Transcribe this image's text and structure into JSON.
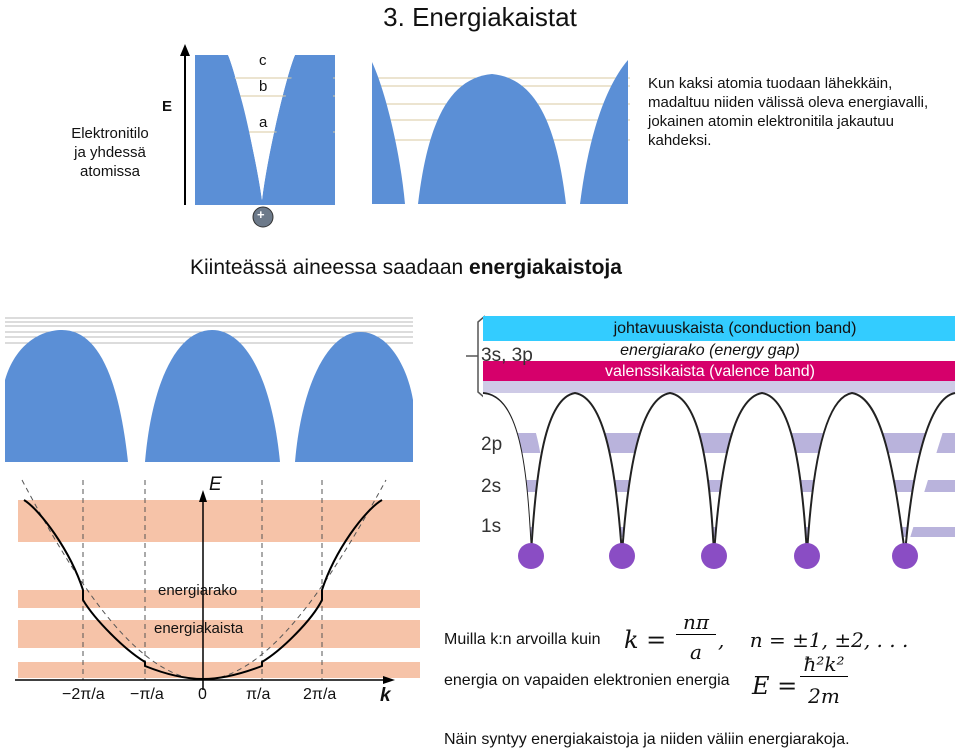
{
  "title": "3. Energiakaistat",
  "top_panel": {
    "left_label_lines": [
      "Elektronitilo",
      "ja yhdessä",
      "atomissa"
    ],
    "axis_label": "E",
    "levels": [
      "c",
      "b",
      "a"
    ],
    "nucleus": "+",
    "description": "Kun kaksi atomia tuodaan lähekkäin, madaltuu niiden välissä oleva energiavalli, jokainen atomin elektronitila jakautuu kahdeksi."
  },
  "subtitle": {
    "prefix": "Kiinteässä aineessa saadaan ",
    "emphasis": "energiakaistoja"
  },
  "band_diagram": {
    "shell_label": "3s, 3p",
    "conduction": "johtavuuskaista (conduction band)",
    "gap": "energiarako (energy gap)",
    "valence": "valenssikaista (valence band)",
    "lower_shells": [
      "2p",
      "2s",
      "1s"
    ],
    "colors": {
      "conduction": "#33ccff",
      "valence": "#d6006b",
      "shell": "#b9b3dc",
      "well": "#5b8fd6"
    }
  },
  "dispersion": {
    "axis_e": "E",
    "axis_k": "k",
    "gap_label": "energiarako",
    "band_label": "energiakaista",
    "ticks": [
      "−2π/a",
      "−π/a",
      "0",
      "π/a",
      "2π/a"
    ],
    "band_color": "#f6c3a8"
  },
  "notes": {
    "k_text": "Muilla k:n arvoilla kuin",
    "e_text": "energia on vapaiden elektronien energia",
    "k_formula_lhs": "k =",
    "k_formula_num": "nπ",
    "k_formula_den": "a",
    "k_formula_n": ",    n = ±1, ±2, . . .",
    "e_formula_lhs": "E =",
    "e_formula_num": "ħ²k²",
    "e_formula_den": "2m",
    "conclusion": "Näin syntyy energiakaistoja ja niiden väliin energiarakoja."
  }
}
